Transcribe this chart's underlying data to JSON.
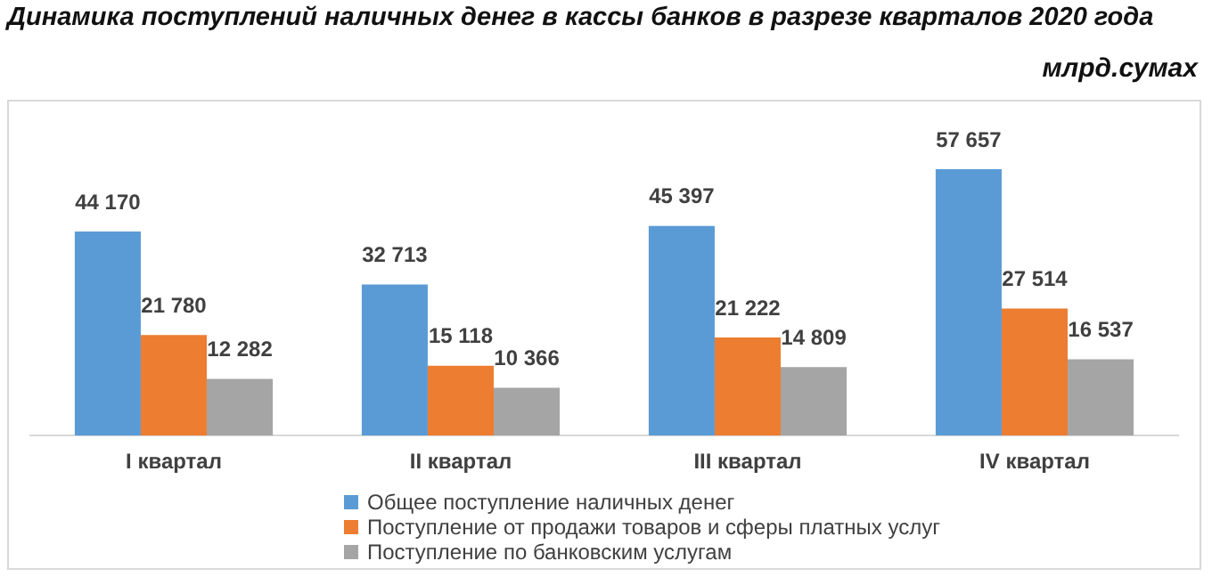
{
  "chart_data": {
    "type": "bar",
    "title": "Динамика поступлений наличных денег в кассы банков в разрезе кварталов 2020 года",
    "subtitle": "млрд.сумах",
    "categories": [
      "I квартал",
      "II квартал",
      "III квартал",
      "IV квартал"
    ],
    "series": [
      {
        "name": "Общее поступление наличных денег",
        "color": "#5b9bd5",
        "values": [
          44170,
          32713,
          45397,
          57657
        ],
        "value_labels": [
          "44 170",
          "32 713",
          "45 397",
          "57 657"
        ]
      },
      {
        "name": "Поступление от продажи товаров и сферы платных услуг",
        "color": "#ed7d31",
        "values": [
          21780,
          15118,
          21222,
          27514
        ],
        "value_labels": [
          "21 780",
          "15 118",
          "21 222",
          "27 514"
        ]
      },
      {
        "name": "Поступление по банковским услугам",
        "color": "#a5a5a5",
        "values": [
          12282,
          10366,
          14809,
          16537
        ],
        "value_labels": [
          "12 282",
          "10 366",
          "14 809",
          "16 537"
        ]
      }
    ],
    "legend": "bottom"
  }
}
